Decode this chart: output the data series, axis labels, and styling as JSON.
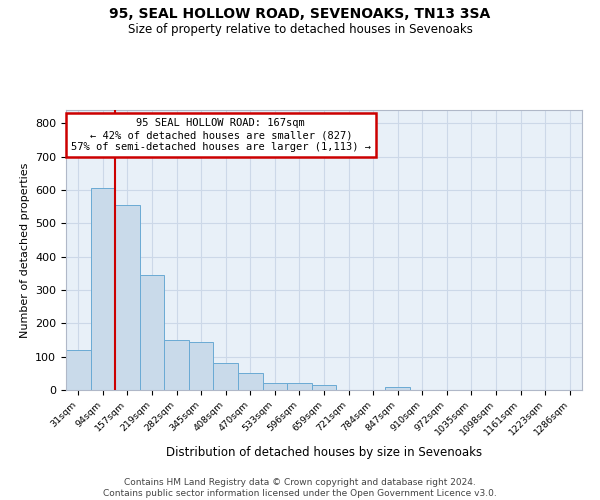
{
  "title1": "95, SEAL HOLLOW ROAD, SEVENOAKS, TN13 3SA",
  "title2": "Size of property relative to detached houses in Sevenoaks",
  "xlabel": "Distribution of detached houses by size in Sevenoaks",
  "ylabel": "Number of detached properties",
  "bins": [
    "31sqm",
    "94sqm",
    "157sqm",
    "219sqm",
    "282sqm",
    "345sqm",
    "408sqm",
    "470sqm",
    "533sqm",
    "596sqm",
    "659sqm",
    "721sqm",
    "784sqm",
    "847sqm",
    "910sqm",
    "972sqm",
    "1035sqm",
    "1098sqm",
    "1161sqm",
    "1223sqm",
    "1286sqm"
  ],
  "values": [
    120,
    605,
    555,
    345,
    150,
    145,
    80,
    50,
    20,
    20,
    15,
    0,
    0,
    10,
    0,
    0,
    0,
    0,
    0,
    0,
    0
  ],
  "bar_color": "#c9daea",
  "bar_edge_color": "#6aaad4",
  "red_line_x": 1.5,
  "highlight_color": "#cc0000",
  "annotation_line1": "95 SEAL HOLLOW ROAD: 167sqm",
  "annotation_line2": "← 42% of detached houses are smaller (827)",
  "annotation_line3": "57% of semi-detached houses are larger (1,113) →",
  "ann_box_edgecolor": "#cc0000",
  "footer": "Contains HM Land Registry data © Crown copyright and database right 2024.\nContains public sector information licensed under the Open Government Licence v3.0.",
  "ylim_max": 840,
  "yticks": [
    0,
    100,
    200,
    300,
    400,
    500,
    600,
    700,
    800
  ],
  "grid_color": "#ccd8e8",
  "bg_color": "#e8f0f8"
}
